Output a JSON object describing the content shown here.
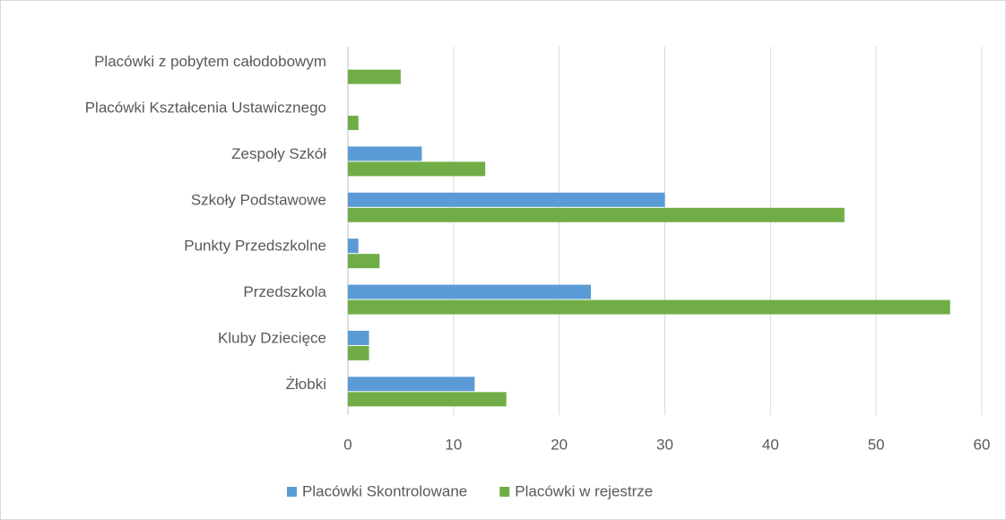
{
  "chart_data": {
    "type": "bar",
    "orientation": "horizontal",
    "categories": [
      "Żłobki",
      "Kluby Dziecięce",
      "Przedszkola",
      "Punkty Przedszkolne",
      "Szkoły Podstawowe",
      "Zespoły Szkół",
      "Placówki Kształcenia Ustawicznego",
      "Placówki z pobytem całodobowym"
    ],
    "series": [
      {
        "name": "Placówki Skontrolowane",
        "color": "#5b9bd5",
        "values": [
          12,
          2,
          23,
          1,
          30,
          7,
          0,
          0
        ]
      },
      {
        "name": "Placówki w rejestrze",
        "color": "#70ad47",
        "values": [
          15,
          2,
          57,
          3,
          47,
          13,
          1,
          5
        ]
      }
    ],
    "xlim": [
      0,
      60
    ],
    "xticks": [
      0,
      10,
      20,
      30,
      40,
      50,
      60
    ],
    "grid": true,
    "legend": "bottom"
  }
}
